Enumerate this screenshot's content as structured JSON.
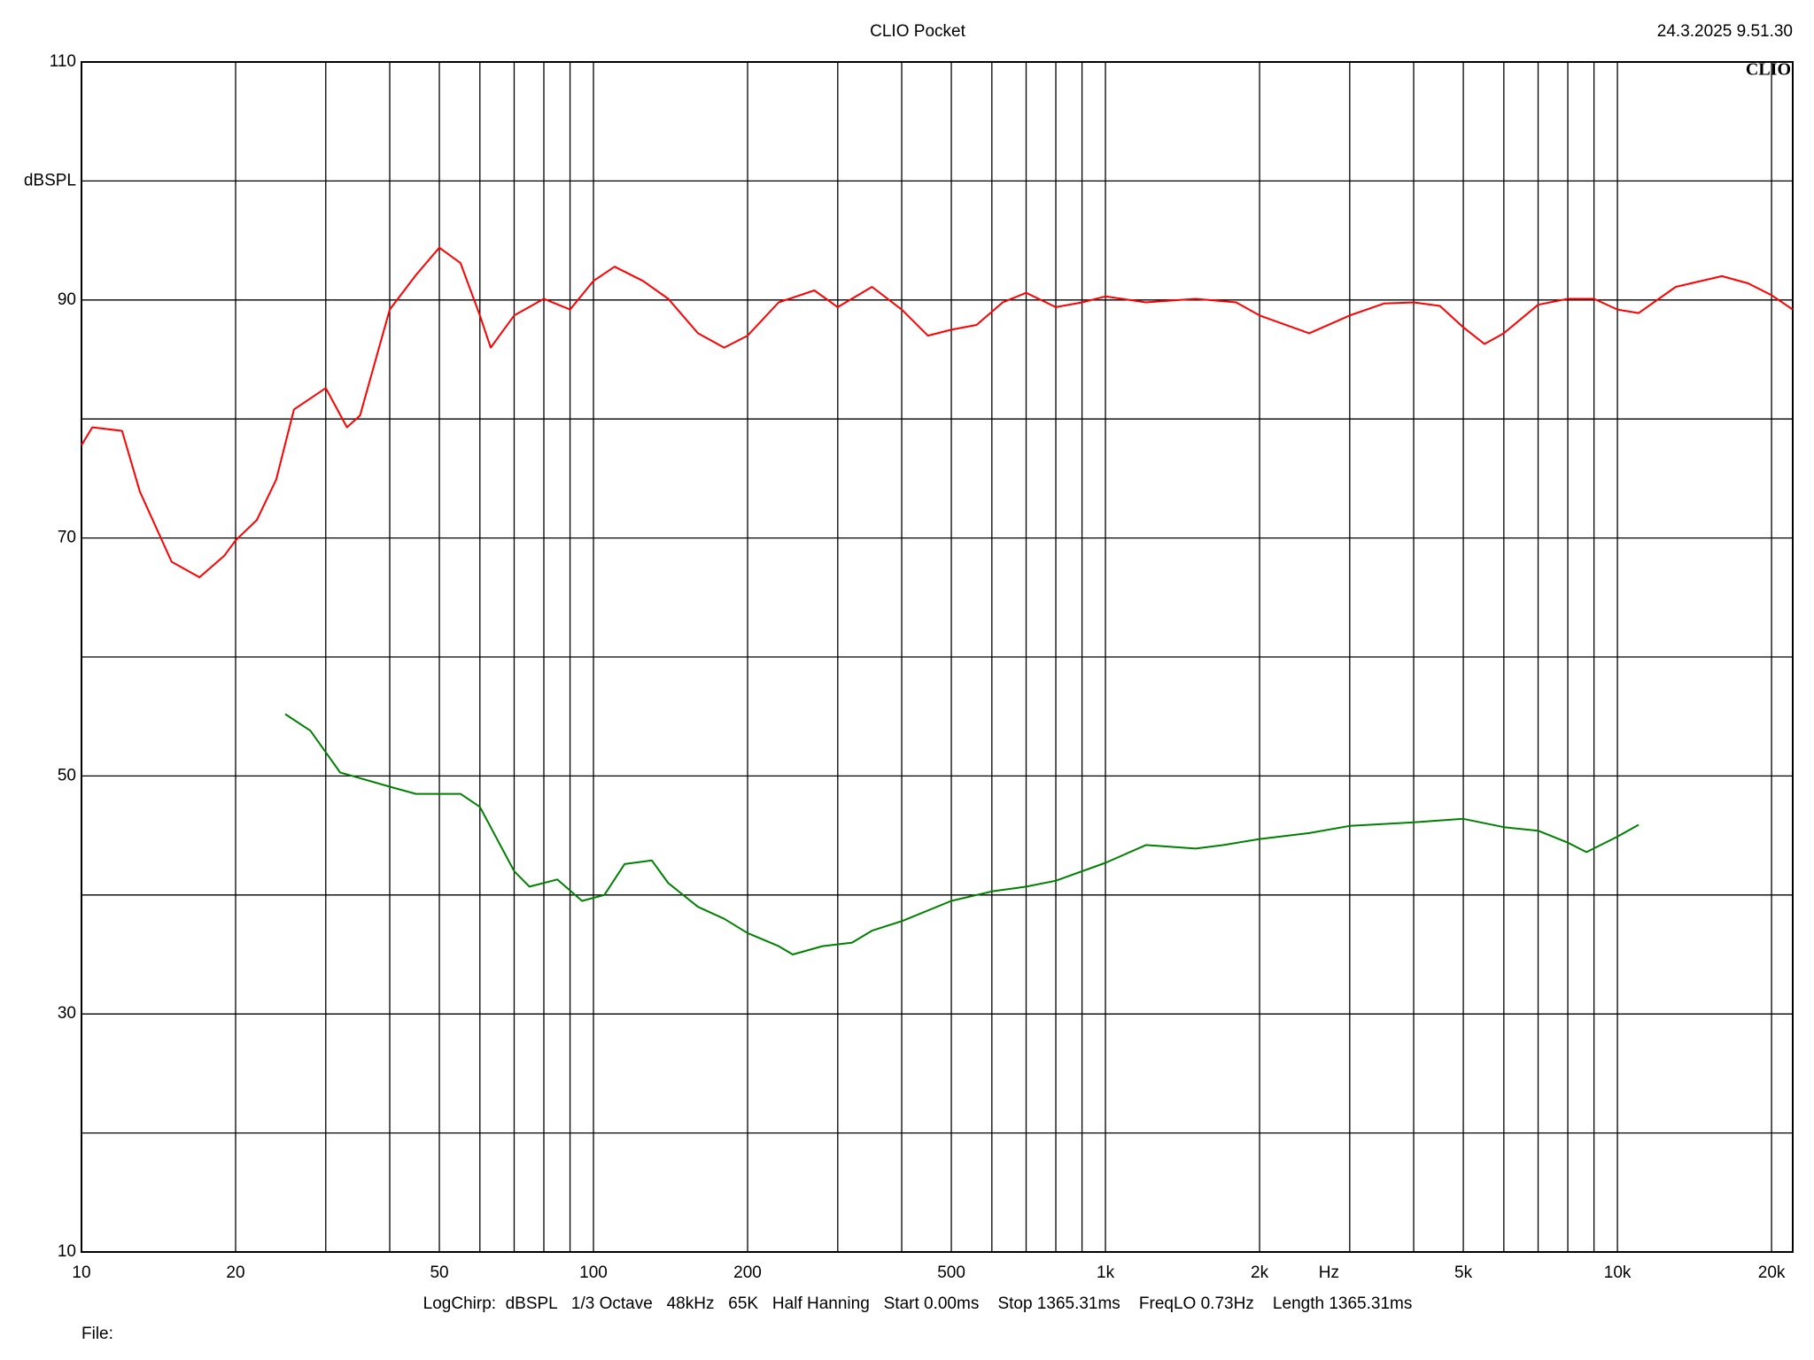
{
  "chart_data": {
    "type": "line",
    "title": "CLIO Pocket",
    "timestamp": "24.3.2025 9.51.30",
    "logo": "CLIO",
    "y_label": "dBSPL",
    "x_label": "Hz",
    "footer": "LogChirp:  dBSPL   1/3 Octave   48kHz   65K   Half Hanning   Start 0.00ms    Stop 1365.31ms    FreqLO 0.73Hz    Length 1365.31ms",
    "file_label": "File:",
    "xscale": "log",
    "xlim": [
      10,
      22000
    ],
    "ylim": [
      10,
      110
    ],
    "xticks": [
      10,
      20,
      50,
      100,
      200,
      500,
      {
        "value": 1000,
        "label": "1k"
      },
      {
        "value": 2000,
        "label": "2k"
      },
      {
        "value": 5000,
        "label": "5k"
      },
      {
        "value": 10000,
        "label": "10k"
      },
      {
        "value": 20000,
        "label": "20k"
      }
    ],
    "minor_xticks": [
      30,
      40,
      60,
      70,
      80,
      90,
      300,
      400,
      600,
      700,
      800,
      900,
      3000,
      4000,
      6000,
      7000,
      8000,
      9000
    ],
    "yticks": [
      10,
      30,
      50,
      70,
      90,
      110
    ],
    "minor_yticks": [
      20,
      40,
      60,
      80,
      100
    ],
    "grid": true,
    "series": [
      {
        "color": "#ff0000",
        "x": [
          10,
          10.5,
          12,
          13,
          15,
          17,
          19,
          20,
          22,
          24,
          26,
          30,
          33,
          35,
          40,
          45,
          50,
          55,
          60,
          63,
          70,
          80,
          90,
          100,
          110,
          125,
          140,
          160,
          180,
          200,
          230,
          270,
          300,
          350,
          400,
          450,
          500,
          560,
          630,
          700,
          800,
          900,
          1000,
          1200,
          1500,
          1800,
          2000,
          2500,
          3000,
          3500,
          4000,
          4500,
          5000,
          5500,
          6000,
          7000,
          8000,
          9000,
          10000,
          11000,
          13000,
          16000,
          18000,
          20000,
          22000
        ],
        "values": [
          77.8,
          79.3,
          79,
          73.9,
          68,
          66.7,
          68.5,
          69.8,
          71.5,
          74.9,
          80.8,
          82.6,
          79.3,
          80.3,
          89.2,
          92.1,
          94.4,
          93.1,
          88.7,
          86,
          88.7,
          90.1,
          89.2,
          91.6,
          92.8,
          91.6,
          90.1,
          87.2,
          86,
          87,
          89.8,
          90.8,
          89.4,
          91.1,
          89.2,
          87,
          87.5,
          87.9,
          89.8,
          90.6,
          89.4,
          89.8,
          90.3,
          89.8,
          90.1,
          89.8,
          88.7,
          87.2,
          88.7,
          89.7,
          89.8,
          89.5,
          87.7,
          86.3,
          87.2,
          89.6,
          90.1,
          90.1,
          89.2,
          88.9,
          91.1,
          92,
          91.4,
          90.4,
          89.2
        ]
      },
      {
        "color": "#008000",
        "x": [
          25,
          28,
          32,
          40,
          45,
          50,
          55,
          60,
          70,
          75,
          85,
          95,
          105,
          115,
          130,
          140,
          160,
          180,
          200,
          230,
          245,
          280,
          320,
          350,
          400,
          500,
          600,
          700,
          800,
          1000,
          1200,
          1500,
          1700,
          2000,
          2500,
          3000,
          4000,
          5000,
          6000,
          7000,
          8000,
          8700,
          10000,
          11000
        ],
        "values": [
          55.2,
          53.8,
          50.3,
          49.1,
          48.5,
          48.5,
          48.5,
          47.4,
          42,
          40.7,
          41.3,
          39.5,
          40,
          42.6,
          42.9,
          41,
          39,
          38,
          36.8,
          35.7,
          35,
          35.7,
          36,
          37,
          37.8,
          39.5,
          40.3,
          40.7,
          41.2,
          42.7,
          44.2,
          43.9,
          44.2,
          44.7,
          45.2,
          45.8,
          46.1,
          46.4,
          45.7,
          45.4,
          44.4,
          43.6,
          44.9,
          45.9
        ]
      }
    ]
  }
}
